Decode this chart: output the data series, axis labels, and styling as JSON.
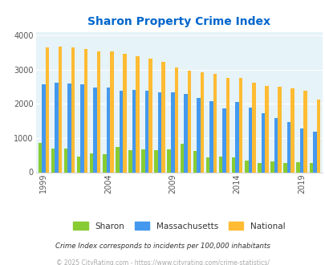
{
  "title": "Sharon Property Crime Index",
  "title_color": "#0066cc",
  "years": [
    1999,
    2000,
    2001,
    2002,
    2003,
    2004,
    2005,
    2006,
    2007,
    2008,
    2009,
    2010,
    2011,
    2012,
    2013,
    2014,
    2015,
    2016,
    2017,
    2018,
    2019,
    2020
  ],
  "sharon": [
    860,
    680,
    700,
    460,
    550,
    520,
    750,
    640,
    670,
    640,
    660,
    840,
    630,
    440,
    460,
    440,
    350,
    260,
    310,
    260,
    290,
    280
  ],
  "massachusetts": [
    2560,
    2620,
    2600,
    2560,
    2480,
    2480,
    2380,
    2400,
    2390,
    2340,
    2330,
    2280,
    2160,
    2070,
    1870,
    2060,
    1880,
    1720,
    1580,
    1460,
    1280,
    1180
  ],
  "national": [
    3640,
    3680,
    3650,
    3590,
    3520,
    3520,
    3450,
    3380,
    3310,
    3230,
    3050,
    2960,
    2930,
    2880,
    2760,
    2760,
    2610,
    2510,
    2490,
    2460,
    2380,
    2110
  ],
  "sharon_color": "#88cc33",
  "massachusetts_color": "#4499ee",
  "national_color": "#ffbb33",
  "bg_color": "#e6f3f8",
  "ylabel_vals": [
    0,
    1000,
    2000,
    3000,
    4000
  ],
  "ylim": [
    0,
    4100
  ],
  "tick_years": [
    1999,
    2004,
    2009,
    2014,
    2019
  ],
  "footnote1": "Crime Index corresponds to incidents per 100,000 inhabitants",
  "footnote2": "© 2025 CityRating.com - https://www.cityrating.com/crime-statistics/",
  "footnote1_color": "#333333",
  "footnote2_color": "#aaaaaa"
}
